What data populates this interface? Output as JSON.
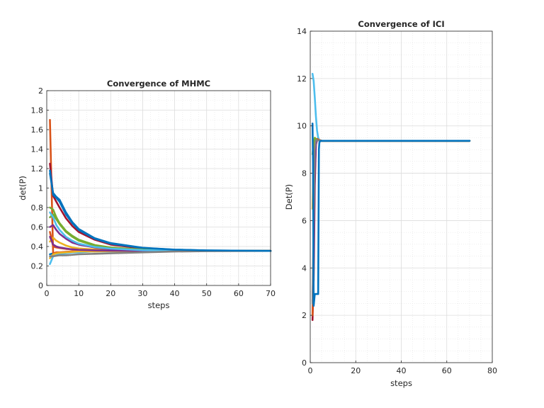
{
  "chart_data": [
    {
      "type": "line",
      "title": "Convergence of MHMC",
      "xlabel": "steps",
      "ylabel": "det(P)",
      "xlim": [
        0,
        70
      ],
      "ylim": [
        0,
        2
      ],
      "xticks": [
        0,
        10,
        20,
        30,
        40,
        50,
        60,
        70
      ],
      "yticks": [
        0,
        0.2,
        0.4,
        0.6,
        0.8,
        1,
        1.2,
        1.4,
        1.6,
        1.8,
        2
      ],
      "grid": true,
      "minor_grid": true,
      "series": [
        {
          "color": "#0072BD",
          "x": [
            1,
            2,
            3,
            4,
            6,
            8,
            10,
            15,
            20,
            30,
            40,
            50,
            70
          ],
          "y": [
            0.32,
            0.33,
            0.33,
            0.34,
            0.34,
            0.345,
            0.35,
            0.35,
            0.355,
            0.355,
            0.355,
            0.355,
            0.355
          ]
        },
        {
          "color": "#D95319",
          "x": [
            1,
            2,
            3,
            4,
            6,
            8,
            10,
            15,
            20,
            30,
            40,
            50,
            70
          ],
          "y": [
            1.7,
            0.33,
            0.34,
            0.34,
            0.345,
            0.35,
            0.35,
            0.35,
            0.355,
            0.355,
            0.355,
            0.355,
            0.355
          ]
        },
        {
          "color": "#EDB120",
          "x": [
            1,
            2,
            3,
            4,
            6,
            8,
            10,
            15,
            20,
            30,
            40,
            50,
            70
          ],
          "y": [
            0.45,
            0.49,
            0.46,
            0.44,
            0.41,
            0.39,
            0.38,
            0.37,
            0.36,
            0.358,
            0.356,
            0.355,
            0.355
          ]
        },
        {
          "color": "#7E2F8E",
          "x": [
            1,
            2,
            3,
            4,
            6,
            8,
            10,
            15,
            20,
            30,
            40,
            50,
            70
          ],
          "y": [
            0.6,
            0.62,
            0.57,
            0.53,
            0.48,
            0.44,
            0.42,
            0.39,
            0.375,
            0.362,
            0.357,
            0.355,
            0.355
          ]
        },
        {
          "color": "#77AC30",
          "x": [
            1,
            2,
            3,
            4,
            6,
            8,
            10,
            15,
            20,
            30,
            40,
            50,
            70
          ],
          "y": [
            0.7,
            0.73,
            0.68,
            0.63,
            0.55,
            0.5,
            0.46,
            0.41,
            0.385,
            0.366,
            0.358,
            0.355,
            0.355
          ]
        },
        {
          "color": "#4DBEEE",
          "x": [
            1,
            2,
            3,
            4,
            6,
            8,
            10,
            15,
            20,
            30,
            40,
            50,
            70
          ],
          "y": [
            0.22,
            0.3,
            0.31,
            0.32,
            0.33,
            0.34,
            0.34,
            0.35,
            0.35,
            0.353,
            0.355,
            0.355,
            0.355
          ]
        },
        {
          "color": "#A2142F",
          "x": [
            1,
            2,
            3,
            4,
            6,
            8,
            10,
            15,
            20,
            30,
            40,
            50,
            70
          ],
          "y": [
            1.25,
            0.92,
            0.86,
            0.8,
            0.69,
            0.61,
            0.55,
            0.47,
            0.42,
            0.38,
            0.365,
            0.358,
            0.355
          ]
        },
        {
          "color": "#0072BD",
          "x": [
            1,
            2,
            3,
            4,
            6,
            8,
            10,
            15,
            20,
            30,
            40,
            50,
            70
          ],
          "y": [
            1.18,
            0.93,
            0.9,
            0.86,
            0.73,
            0.64,
            0.57,
            0.48,
            0.43,
            0.385,
            0.367,
            0.359,
            0.355
          ]
        },
        {
          "color": "#D95319",
          "x": [
            1,
            2,
            3,
            4,
            6,
            8,
            10,
            15,
            20,
            30,
            40,
            50,
            70
          ],
          "y": [
            0.55,
            0.4,
            0.39,
            0.385,
            0.375,
            0.37,
            0.365,
            0.36,
            0.358,
            0.356,
            0.355,
            0.355,
            0.355
          ]
        },
        {
          "color": "#EDB120",
          "x": [
            1,
            2,
            3,
            4,
            6,
            8,
            10,
            15,
            20,
            30,
            40,
            50,
            70
          ],
          "y": [
            0.28,
            0.32,
            0.33,
            0.335,
            0.34,
            0.345,
            0.35,
            0.35,
            0.352,
            0.354,
            0.355,
            0.355,
            0.355
          ]
        },
        {
          "color": "#7E2F8E",
          "x": [
            1,
            2,
            3,
            4,
            6,
            8,
            10,
            15,
            20,
            30,
            40,
            50,
            70
          ],
          "y": [
            0.5,
            0.42,
            0.4,
            0.39,
            0.38,
            0.37,
            0.366,
            0.361,
            0.358,
            0.356,
            0.355,
            0.355,
            0.355
          ]
        },
        {
          "color": "#77AC30",
          "x": [
            1,
            2,
            3,
            4,
            6,
            8,
            10,
            15,
            20,
            30,
            40,
            50,
            70
          ],
          "y": [
            0.8,
            0.78,
            0.7,
            0.64,
            0.56,
            0.51,
            0.47,
            0.415,
            0.39,
            0.368,
            0.359,
            0.356,
            0.355
          ]
        },
        {
          "color": "#4DBEEE",
          "x": [
            1,
            2,
            3,
            4,
            6,
            8,
            10,
            15,
            20,
            30,
            40,
            50,
            70
          ],
          "y": [
            0.75,
            0.7,
            0.62,
            0.57,
            0.5,
            0.46,
            0.43,
            0.395,
            0.378,
            0.362,
            0.357,
            0.355,
            0.355
          ]
        },
        {
          "color": "#808080",
          "x": [
            1,
            2,
            3,
            4,
            6,
            8,
            10,
            15,
            20,
            30,
            40,
            50,
            70
          ],
          "y": [
            0.3,
            0.3,
            0.305,
            0.31,
            0.31,
            0.315,
            0.32,
            0.325,
            0.33,
            0.34,
            0.348,
            0.352,
            0.355
          ]
        },
        {
          "color": "#0072BD",
          "x": [
            1,
            2,
            3,
            4,
            6,
            8,
            10,
            15,
            20,
            30,
            40,
            50,
            70
          ],
          "y": [
            1.15,
            0.95,
            0.91,
            0.88,
            0.75,
            0.65,
            0.58,
            0.485,
            0.435,
            0.387,
            0.368,
            0.36,
            0.355
          ]
        }
      ]
    },
    {
      "type": "line",
      "title": "Convergence of ICI",
      "xlabel": "steps",
      "ylabel": "Det(P)",
      "xlim": [
        0,
        80
      ],
      "ylim": [
        0,
        14
      ],
      "xticks": [
        0,
        20,
        40,
        60,
        80
      ],
      "yticks": [
        0,
        2,
        4,
        6,
        8,
        10,
        12,
        14
      ],
      "grid": true,
      "minor_grid": true,
      "series": [
        {
          "color": "#4DBEEE",
          "x": [
            1,
            1.5,
            2,
            2.5,
            3,
            3.5,
            4,
            5,
            70
          ],
          "y": [
            12.2,
            11.9,
            11.2,
            10.4,
            9.8,
            9.5,
            9.4,
            9.37,
            9.37
          ]
        },
        {
          "color": "#A2142F",
          "x": [
            1,
            1.5,
            2,
            2.5,
            3,
            4,
            5,
            70
          ],
          "y": [
            1.8,
            3.5,
            7.5,
            9.3,
            9.4,
            9.4,
            9.37,
            9.37
          ]
        },
        {
          "color": "#D95319",
          "x": [
            1,
            1.5,
            2,
            2.5,
            3,
            4,
            5,
            70
          ],
          "y": [
            2.0,
            5.0,
            8.8,
            9.4,
            9.45,
            9.4,
            9.37,
            9.37
          ]
        },
        {
          "color": "#EDB120",
          "x": [
            1,
            1.5,
            2,
            2.5,
            3,
            4,
            5,
            70
          ],
          "y": [
            6.5,
            8.5,
            9.3,
            9.4,
            9.4,
            9.38,
            9.37,
            9.37
          ]
        },
        {
          "color": "#7E2F8E",
          "x": [
            1,
            1.5,
            2,
            2.5,
            3,
            4,
            5,
            70
          ],
          "y": [
            2.6,
            4.5,
            8.0,
            9.2,
            9.4,
            9.38,
            9.37,
            9.37
          ]
        },
        {
          "color": "#77AC30",
          "x": [
            1,
            1.5,
            2,
            2.5,
            3,
            4,
            5,
            70
          ],
          "y": [
            8.8,
            9.3,
            9.5,
            9.45,
            9.4,
            9.38,
            9.37,
            9.37
          ]
        },
        {
          "color": "#808080",
          "x": [
            1,
            1.5,
            2,
            2.5,
            3,
            4,
            5,
            70
          ],
          "y": [
            2.5,
            6.0,
            9.0,
            9.4,
            9.4,
            9.38,
            9.37,
            9.37
          ]
        },
        {
          "color": "#0072BD",
          "x": [
            1,
            1.2,
            1.5,
            2,
            2.5,
            3,
            3.5,
            3.8,
            4,
            4.3,
            5,
            70
          ],
          "y": [
            10.1,
            8.5,
            2.4,
            2.9,
            2.9,
            2.9,
            2.9,
            9.0,
            9.3,
            9.35,
            9.37,
            9.37
          ]
        }
      ]
    }
  ]
}
